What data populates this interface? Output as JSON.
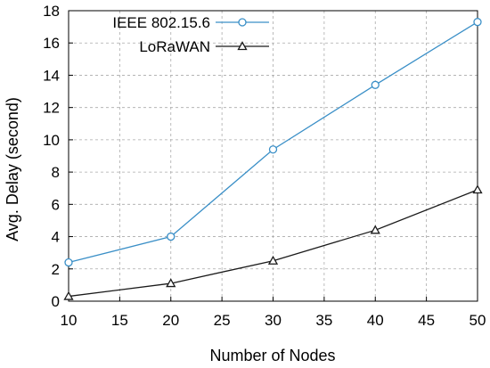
{
  "chart_data": {
    "type": "line",
    "xlabel": "Number of Nodes",
    "ylabel": "Avg. Delay (second)",
    "xlim": [
      10,
      50
    ],
    "ylim": [
      0,
      18
    ],
    "xticks": [
      10,
      15,
      20,
      25,
      30,
      35,
      40,
      45,
      50
    ],
    "yticks": [
      0,
      2,
      4,
      6,
      8,
      10,
      12,
      14,
      16,
      18
    ],
    "grid": "dashed",
    "legend_position": "top-left",
    "x": [
      10,
      20,
      30,
      40,
      50
    ],
    "series": [
      {
        "name": "IEEE 802.15.6",
        "values": [
          2.4,
          4.0,
          9.4,
          13.4,
          17.3
        ],
        "color": "#3a8fc7",
        "marker": "circle"
      },
      {
        "name": "LoRaWAN",
        "values": [
          0.3,
          1.1,
          2.5,
          4.4,
          6.9
        ],
        "color": "#1a1a1a",
        "marker": "triangle"
      }
    ]
  }
}
